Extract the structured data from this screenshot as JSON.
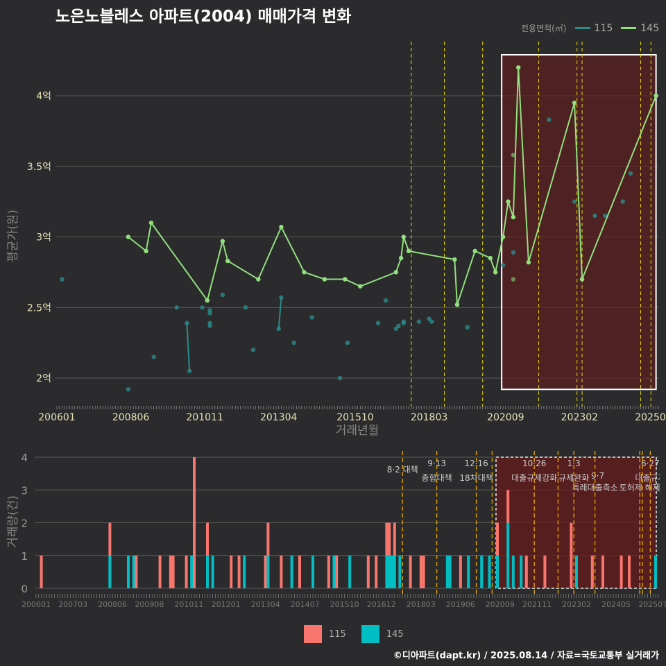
{
  "title": "노은노블레스 아파트(2004) 매매가격 변화",
  "footer": "©디아파트(dapt.kr) / 2025.08.14 / 자료=국토교통부 실거래가",
  "colors": {
    "s115_bar": "#f8766d",
    "s145_bar": "#00bfc4",
    "s115_point": "#2a8c8c",
    "s145_line": "#92e07e",
    "highlight": "#6b1a1a",
    "event_top": "#e8dc10",
    "event_bottom": "#e0a000"
  },
  "legend_top": {
    "title": "전용면적(㎡)",
    "entries": [
      "115",
      "145"
    ]
  },
  "legend_bottom": {
    "entries": [
      "115",
      "145"
    ]
  },
  "chart_data": [
    {
      "type": "line",
      "title": "노은노블레스 아파트(2004) 매매가격 변화",
      "xlabel": "거래년월",
      "ylabel": "평균가(원)",
      "ylim": [
        1.8,
        4.3
      ],
      "y_ticks": [
        {
          "value": 2,
          "label": "2억"
        },
        {
          "value": 2.5,
          "label": "2.5억"
        },
        {
          "value": 3,
          "label": "3억"
        },
        {
          "value": 3.5,
          "label": "3.5억"
        },
        {
          "value": 4,
          "label": "4억"
        }
      ],
      "x_ticks": [
        "200601",
        "200806",
        "201011",
        "201304",
        "201510",
        "201803",
        "202009",
        "202302",
        "202507"
      ],
      "legend_placement": "top-right",
      "series": [
        {
          "name": "145",
          "line": [
            [
              "200805",
              3.0
            ],
            [
              "200812",
              2.9
            ],
            [
              "200902",
              3.1
            ],
            [
              "201012",
              2.55
            ],
            [
              "201106",
              2.97
            ],
            [
              "201108",
              2.83
            ],
            [
              "201208",
              2.7
            ],
            [
              "201305",
              3.07
            ],
            [
              "201402",
              2.75
            ],
            [
              "201410",
              2.7
            ],
            [
              "201506",
              2.7
            ],
            [
              "201512",
              2.65
            ],
            [
              "201702",
              2.75
            ],
            [
              "201704",
              2.85
            ],
            [
              "201705",
              3.0
            ],
            [
              "201707",
              2.9
            ],
            [
              "201901",
              2.84
            ],
            [
              "201902",
              2.52
            ],
            [
              "201909",
              2.9
            ],
            [
              "202003",
              2.85
            ],
            [
              "202005",
              2.75
            ],
            [
              "202008",
              3.0
            ],
            [
              "202010",
              3.25
            ],
            [
              "202012",
              3.14
            ],
            [
              "202102",
              4.2
            ],
            [
              "202106",
              2.82
            ],
            [
              "202212",
              3.95
            ],
            [
              "202303",
              2.7
            ],
            [
              "202508",
              4.0
            ]
          ],
          "points": [
            [
              "202012",
              3.58
            ],
            [
              "202012",
              2.7
            ]
          ]
        },
        {
          "name": "115",
          "points": [
            [
              "200603",
              2.7
            ],
            [
              "200805",
              1.92
            ],
            [
              "200903",
              2.15
            ],
            [
              "200912",
              2.5
            ],
            [
              "201004",
              2.39
            ],
            [
              "201005",
              2.05
            ],
            [
              "201010",
              2.5
            ],
            [
              "201101",
              2.48
            ],
            [
              "201101",
              2.46
            ],
            [
              "201101",
              2.39
            ],
            [
              "201101",
              2.37
            ],
            [
              "201106",
              2.59
            ],
            [
              "201203",
              2.5
            ],
            [
              "201206",
              2.2
            ],
            [
              "201304",
              2.35
            ],
            [
              "201305",
              2.57
            ],
            [
              "201310",
              2.25
            ],
            [
              "201405",
              2.43
            ],
            [
              "201504",
              2.0
            ],
            [
              "201507",
              2.25
            ],
            [
              "201607",
              2.39
            ],
            [
              "201610",
              2.55
            ],
            [
              "201702",
              2.35
            ],
            [
              "201703",
              2.37
            ],
            [
              "201705",
              2.39
            ],
            [
              "201705",
              2.4
            ],
            [
              "201711",
              2.4
            ],
            [
              "201803",
              2.42
            ],
            [
              "201804",
              2.4
            ],
            [
              "201906",
              2.36
            ],
            [
              "202008",
              2.8
            ],
            [
              "202012",
              2.89
            ],
            [
              "202202",
              3.83
            ],
            [
              "202212",
              3.25
            ],
            [
              "202308",
              3.15
            ],
            [
              "202312",
              3.15
            ],
            [
              "202407",
              3.25
            ],
            [
              "202410",
              3.45
            ]
          ],
          "segments": [
            [
              [
                "201004",
                2.39
              ],
              [
                "201005",
                2.05
              ]
            ],
            [
              [
                "201304",
                2.35
              ],
              [
                "201305",
                2.57
              ]
            ]
          ]
        }
      ],
      "highlight": {
        "from": "202008",
        "to": "202508",
        "ymin": 1.92,
        "ymax": 4.29
      },
      "event_dates": [
        "201708",
        "201809",
        "201912",
        "202110",
        "202301",
        "202303",
        "202502",
        "202506"
      ]
    },
    {
      "type": "bar",
      "stacked": true,
      "xlabel": "",
      "ylabel": "거래량(건)",
      "ylim": [
        0,
        4
      ],
      "y_ticks": [
        "0",
        "1",
        "2",
        "3",
        "4"
      ],
      "x_ticks": [
        "200601",
        "200703",
        "200806",
        "200908",
        "201011",
        "201201",
        "201304",
        "201407",
        "201510",
        "201612",
        "201803",
        "201906",
        "202009",
        "202111",
        "202302",
        "202405",
        "202507"
      ],
      "bars": [
        {
          "x": "200603",
          "115": 1,
          "145": 0
        },
        {
          "x": "200805",
          "115": 1,
          "145": 1
        },
        {
          "x": "200812",
          "115": 0,
          "145": 1
        },
        {
          "x": "200902",
          "115": 0,
          "145": 1
        },
        {
          "x": "200903",
          "115": 1,
          "145": 0
        },
        {
          "x": "200912",
          "115": 1,
          "145": 0
        },
        {
          "x": "201004",
          "115": 1,
          "145": 0
        },
        {
          "x": "201005",
          "115": 1,
          "145": 0
        },
        {
          "x": "201010",
          "115": 1,
          "145": 0
        },
        {
          "x": "201012",
          "115": 0,
          "145": 1
        },
        {
          "x": "201101",
          "115": 4,
          "145": 0
        },
        {
          "x": "201106",
          "115": 1,
          "145": 1
        },
        {
          "x": "201108",
          "115": 0,
          "145": 1
        },
        {
          "x": "201203",
          "115": 1,
          "145": 0
        },
        {
          "x": "201206",
          "115": 1,
          "145": 0
        },
        {
          "x": "201208",
          "115": 0,
          "145": 1
        },
        {
          "x": "201304",
          "115": 1,
          "145": 0
        },
        {
          "x": "201305",
          "115": 1,
          "145": 1
        },
        {
          "x": "201310",
          "115": 1,
          "145": 0
        },
        {
          "x": "201402",
          "115": 0,
          "145": 1
        },
        {
          "x": "201405",
          "115": 1,
          "145": 0
        },
        {
          "x": "201410",
          "115": 0,
          "145": 1
        },
        {
          "x": "201504",
          "115": 1,
          "145": 0
        },
        {
          "x": "201506",
          "115": 0,
          "145": 1
        },
        {
          "x": "201507",
          "115": 1,
          "145": 0
        },
        {
          "x": "201512",
          "115": 0,
          "145": 1
        },
        {
          "x": "201607",
          "115": 1,
          "145": 0
        },
        {
          "x": "201610",
          "115": 1,
          "145": 0
        },
        {
          "x": "201702",
          "115": 1,
          "145": 1
        },
        {
          "x": "201703",
          "115": 1,
          "145": 1
        },
        {
          "x": "201704",
          "115": 0,
          "145": 1
        },
        {
          "x": "201705",
          "115": 1,
          "145": 1
        },
        {
          "x": "201707",
          "115": 0,
          "145": 1
        },
        {
          "x": "201711",
          "115": 1,
          "145": 0
        },
        {
          "x": "201803",
          "115": 1,
          "145": 0
        },
        {
          "x": "201804",
          "115": 1,
          "145": 0
        },
        {
          "x": "201901",
          "115": 0,
          "145": 1
        },
        {
          "x": "201902",
          "115": 0,
          "145": 1
        },
        {
          "x": "201906",
          "115": 1,
          "145": 0
        },
        {
          "x": "201909",
          "115": 0,
          "145": 1
        },
        {
          "x": "202002",
          "115": 0,
          "145": 1
        },
        {
          "x": "202005",
          "115": 0,
          "145": 1
        },
        {
          "x": "202008",
          "115": 1,
          "145": 1
        },
        {
          "x": "202012",
          "115": 1,
          "145": 2
        },
        {
          "x": "202102",
          "115": 0,
          "145": 1
        },
        {
          "x": "202105",
          "115": 0,
          "145": 1
        },
        {
          "x": "202107",
          "115": 1,
          "145": 0
        },
        {
          "x": "202202",
          "115": 1,
          "145": 0
        },
        {
          "x": "202212",
          "115": 2,
          "145": 0
        },
        {
          "x": "202302",
          "115": 0,
          "145": 1
        },
        {
          "x": "202308",
          "115": 1,
          "145": 0
        },
        {
          "x": "202312",
          "115": 1,
          "145": 0
        },
        {
          "x": "202407",
          "115": 1,
          "145": 0
        },
        {
          "x": "202410",
          "115": 1,
          "145": 0
        },
        {
          "x": "202508",
          "115": 0,
          "145": 1
        }
      ],
      "highlight": {
        "from": "202008",
        "to": "202508"
      },
      "events": [
        {
          "date": "201708",
          "date_label": "8·2 대책",
          "policy": ""
        },
        {
          "date": "201809",
          "date_label": "9·13",
          "policy": "종합대책"
        },
        {
          "date": "201912",
          "date_label": "12·16",
          "policy": "18차대책"
        },
        {
          "date": "202006",
          "date_label": "",
          "policy": ""
        },
        {
          "date": "202110",
          "date_label": "10·26",
          "policy": "대출규제강화"
        },
        {
          "date": "202207",
          "date_label": "",
          "policy": ""
        },
        {
          "date": "202301",
          "date_label": "1·3",
          "policy": "규제완화"
        },
        {
          "date": "202309",
          "date_label": "9·7",
          "policy": "특례대출축소"
        },
        {
          "date": "202502",
          "date_label": "",
          "policy": "토허제 해제"
        },
        {
          "date": "202503",
          "date_label": "",
          "policy": ""
        },
        {
          "date": "202506",
          "date_label": "6·27",
          "policy": "대출규제"
        }
      ]
    }
  ]
}
